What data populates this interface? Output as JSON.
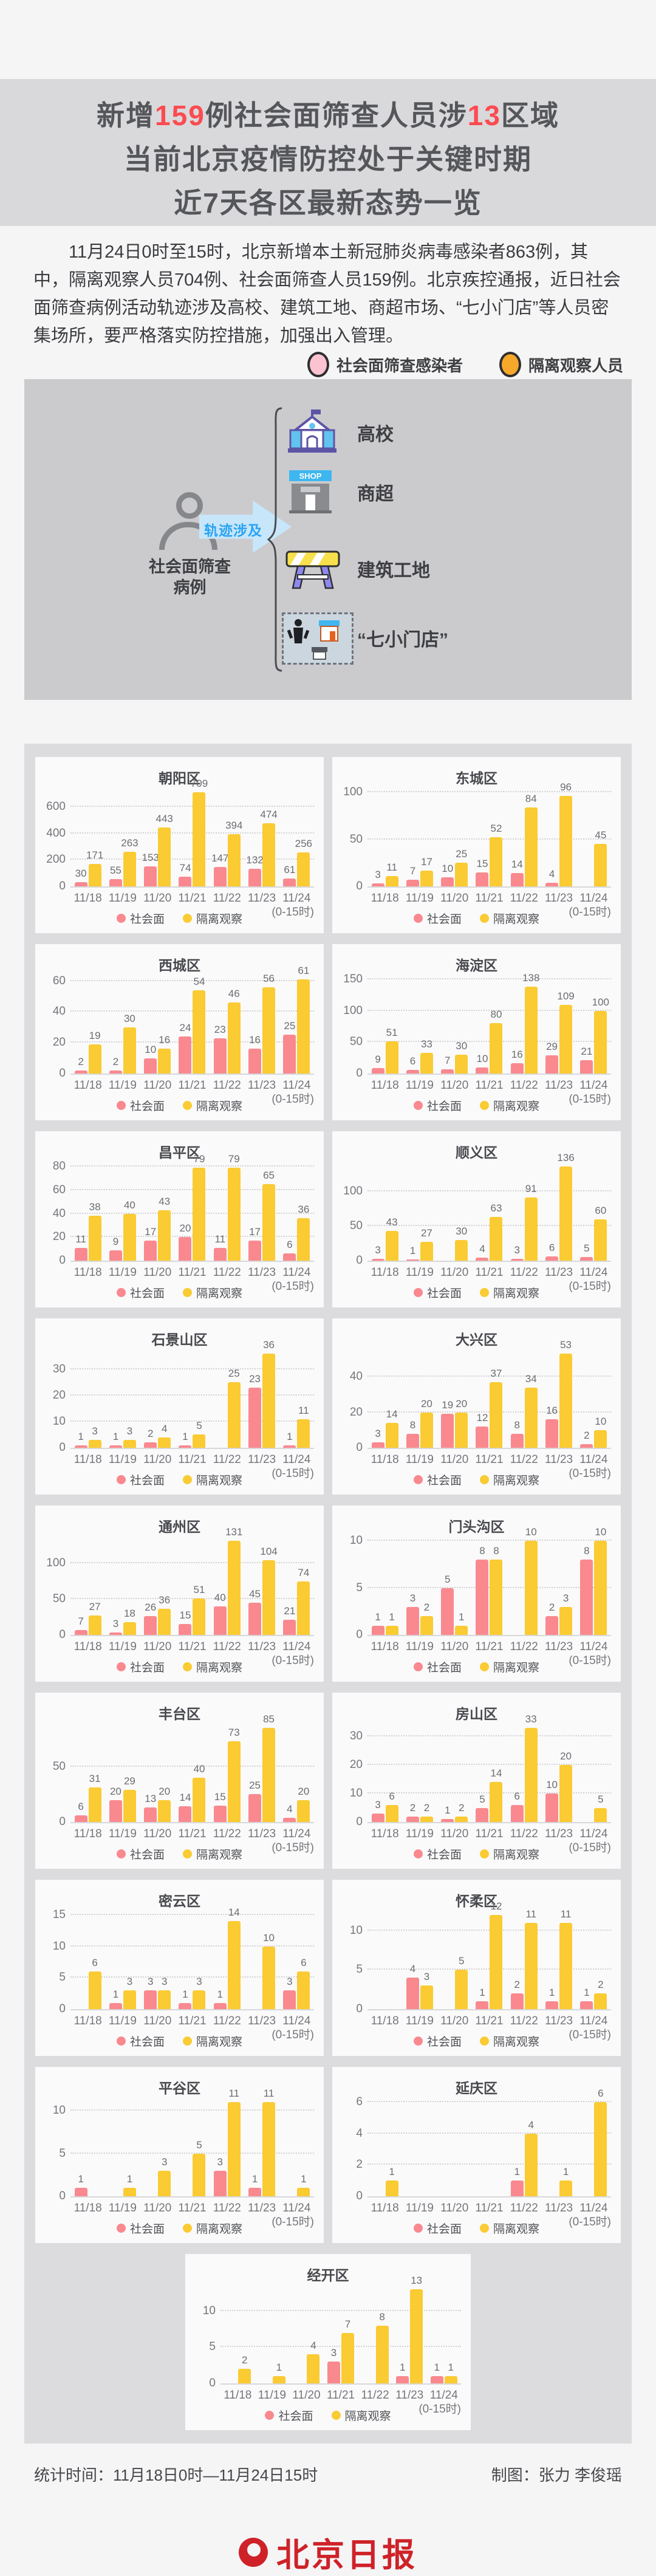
{
  "title": {
    "l1_pre": "新增",
    "l1_num1": "159",
    "l1_mid": "例社会面筛查人员涉",
    "l1_num2": "13",
    "l1_post": "区域",
    "line2": "当前北京疫情防控处于关键时期",
    "line3": "近7天各区最新态势一览",
    "accent_color": "#FB4B51"
  },
  "intro": {
    "text": "11月24日0时至15时，北京新增本土新冠肺炎病毒感染者863例，其中，隔离观察人员704例、社会面筛查人员159例。北京疾控通报，近日社会面筛查病例活动轨迹涉及高校、建筑工地、商超市场、“七小门店”等人员密集场所，要严格落实防控措施，加强出入管理。"
  },
  "legend": {
    "items": [
      {
        "label": "社会面筛查感染者",
        "color": "#FBC3D0"
      },
      {
        "label": "隔离观察人员",
        "color": "#F6A82B"
      }
    ]
  },
  "diagram": {
    "person_label_line1": "社会面筛查",
    "person_label_line2": "病例",
    "arrow_label": "轨迹涉及",
    "items": [
      {
        "label": "高校"
      },
      {
        "label": "商超",
        "icon_text": "SHOP"
      },
      {
        "label": "建筑工地"
      },
      {
        "label": "“七小门店”"
      }
    ]
  },
  "chart_common": {
    "xnote": "(0-15时)",
    "legend": [
      {
        "name": "社会面",
        "color": "#F9898F"
      },
      {
        "name": "隔离观察",
        "color": "#FACB32"
      }
    ]
  },
  "chart_data": [
    {
      "type": "bar",
      "title": "朝阳区",
      "categories": [
        "11/18",
        "11/19",
        "11/20",
        "11/21",
        "11/22",
        "11/23",
        "11/24"
      ],
      "yticks": [
        0,
        200,
        400,
        600
      ],
      "ymax": 709,
      "series": [
        {
          "name": "社会面",
          "values": [
            30,
            55,
            153,
            74,
            147,
            132,
            61
          ]
        },
        {
          "name": "隔离观察",
          "values": [
            171,
            263,
            443,
            709,
            394,
            474,
            256
          ]
        }
      ]
    },
    {
      "type": "bar",
      "title": "东城区",
      "categories": [
        "11/18",
        "11/19",
        "11/20",
        "11/21",
        "11/22",
        "11/23",
        "11/24"
      ],
      "yticks": [
        0,
        50,
        100
      ],
      "ymax": 100,
      "series": [
        {
          "name": "社会面",
          "values": [
            3,
            7,
            10,
            15,
            14,
            4,
            null
          ]
        },
        {
          "name": "隔离观察",
          "values": [
            11,
            17,
            25,
            52,
            84,
            96,
            45
          ]
        }
      ]
    },
    {
      "type": "bar",
      "title": "西城区",
      "categories": [
        "11/18",
        "11/19",
        "11/20",
        "11/21",
        "11/22",
        "11/23",
        "11/24"
      ],
      "yticks": [
        0,
        20,
        40,
        60
      ],
      "ymax": 61,
      "series": [
        {
          "name": "社会面",
          "values": [
            2,
            2,
            10,
            24,
            23,
            16,
            25
          ]
        },
        {
          "name": "隔离观察",
          "values": [
            19,
            30,
            16,
            54,
            46,
            56,
            61
          ]
        }
      ]
    },
    {
      "type": "bar",
      "title": "海淀区",
      "categories": [
        "11/18",
        "11/19",
        "11/20",
        "11/21",
        "11/22",
        "11/23",
        "11/24"
      ],
      "yticks": [
        0,
        50,
        100,
        150
      ],
      "ymax": 150,
      "series": [
        {
          "name": "社会面",
          "values": [
            9,
            6,
            7,
            10,
            16,
            29,
            21
          ]
        },
        {
          "name": "隔离观察",
          "values": [
            51,
            33,
            30,
            80,
            138,
            109,
            100
          ]
        }
      ]
    },
    {
      "type": "bar",
      "title": "昌平区",
      "categories": [
        "11/18",
        "11/19",
        "11/20",
        "11/21",
        "11/22",
        "11/23",
        "11/24"
      ],
      "yticks": [
        0,
        20,
        40,
        60,
        80
      ],
      "ymax": 80,
      "series": [
        {
          "name": "社会面",
          "values": [
            11,
            9,
            17,
            20,
            11,
            17,
            6
          ]
        },
        {
          "name": "隔离观察",
          "values": [
            38,
            40,
            43,
            79,
            79,
            65,
            36
          ]
        }
      ]
    },
    {
      "type": "bar",
      "title": "顺义区",
      "categories": [
        "11/18",
        "11/19",
        "11/20",
        "11/21",
        "11/22",
        "11/23",
        "11/24"
      ],
      "yticks": [
        0,
        50,
        100
      ],
      "ymax": 136,
      "series": [
        {
          "name": "社会面",
          "values": [
            3,
            1,
            null,
            4,
            3,
            6,
            5
          ]
        },
        {
          "name": "隔离观察",
          "values": [
            43,
            27,
            30,
            63,
            91,
            136,
            60
          ]
        }
      ]
    },
    {
      "type": "bar",
      "title": "石景山区",
      "categories": [
        "11/18",
        "11/19",
        "11/20",
        "11/21",
        "11/22",
        "11/23",
        "11/24"
      ],
      "yticks": [
        0,
        10,
        20,
        30
      ],
      "ymax": 36,
      "series": [
        {
          "name": "社会面",
          "values": [
            1,
            1,
            2,
            1,
            null,
            23,
            1
          ]
        },
        {
          "name": "隔离观察",
          "values": [
            3,
            3,
            4,
            5,
            25,
            36,
            11
          ]
        }
      ]
    },
    {
      "type": "bar",
      "title": "大兴区",
      "categories": [
        "11/18",
        "11/19",
        "11/20",
        "11/21",
        "11/22",
        "11/23",
        "11/24"
      ],
      "yticks": [
        0,
        20,
        40
      ],
      "ymax": 53,
      "series": [
        {
          "name": "社会面",
          "values": [
            3,
            8,
            19,
            12,
            8,
            16,
            2
          ]
        },
        {
          "name": "隔离观察",
          "values": [
            14,
            20,
            20,
            37,
            34,
            53,
            10
          ]
        }
      ]
    },
    {
      "type": "bar",
      "title": "通州区",
      "categories": [
        "11/18",
        "11/19",
        "11/20",
        "11/21",
        "11/22",
        "11/23",
        "11/24"
      ],
      "yticks": [
        0,
        50,
        100
      ],
      "ymax": 131,
      "series": [
        {
          "name": "社会面",
          "values": [
            7,
            3,
            26,
            15,
            40,
            45,
            21
          ]
        },
        {
          "name": "隔离观察",
          "values": [
            27,
            18,
            36,
            51,
            131,
            104,
            74
          ]
        }
      ]
    },
    {
      "type": "bar",
      "title": "门头沟区",
      "categories": [
        "11/18",
        "11/19",
        "11/20",
        "11/21",
        "11/22",
        "11/23",
        "11/24"
      ],
      "yticks": [
        0,
        5,
        10
      ],
      "ymax": 10,
      "series": [
        {
          "name": "社会面",
          "values": [
            1,
            3,
            5,
            8,
            null,
            2,
            8
          ]
        },
        {
          "name": "隔离观察",
          "values": [
            1,
            2,
            1,
            8,
            10,
            3,
            10
          ]
        }
      ]
    },
    {
      "type": "bar",
      "title": "丰台区",
      "categories": [
        "11/18",
        "11/19",
        "11/20",
        "11/21",
        "11/22",
        "11/23",
        "11/24"
      ],
      "yticks": [
        0,
        50
      ],
      "ymax": 85,
      "series": [
        {
          "name": "社会面",
          "values": [
            6,
            20,
            13,
            14,
            15,
            25,
            4
          ]
        },
        {
          "name": "隔离观察",
          "values": [
            31,
            29,
            20,
            40,
            73,
            85,
            20
          ]
        }
      ]
    },
    {
      "type": "bar",
      "title": "房山区",
      "categories": [
        "11/18",
        "11/19",
        "11/20",
        "11/21",
        "11/22",
        "11/23",
        "11/24"
      ],
      "yticks": [
        0,
        10,
        20,
        30
      ],
      "ymax": 33,
      "series": [
        {
          "name": "社会面",
          "values": [
            3,
            2,
            1,
            5,
            6,
            10,
            null
          ]
        },
        {
          "name": "隔离观察",
          "values": [
            6,
            2,
            2,
            14,
            33,
            20,
            5
          ]
        }
      ]
    },
    {
      "type": "bar",
      "title": "密云区",
      "categories": [
        "11/18",
        "11/19",
        "11/20",
        "11/21",
        "11/22",
        "11/23",
        "11/24"
      ],
      "yticks": [
        0,
        5,
        10,
        15
      ],
      "ymax": 15,
      "series": [
        {
          "name": "社会面",
          "values": [
            null,
            1,
            3,
            1,
            1,
            null,
            3
          ]
        },
        {
          "name": "隔离观察",
          "values": [
            6,
            3,
            3,
            3,
            14,
            10,
            6
          ]
        }
      ]
    },
    {
      "type": "bar",
      "title": "怀柔区",
      "categories": [
        "11/18",
        "11/19",
        "11/20",
        "11/21",
        "11/22",
        "11/23",
        "11/24"
      ],
      "yticks": [
        0,
        5,
        10
      ],
      "ymax": 12,
      "series": [
        {
          "name": "社会面",
          "values": [
            null,
            4,
            null,
            1,
            2,
            1,
            1
          ]
        },
        {
          "name": "隔离观察",
          "values": [
            null,
            3,
            5,
            12,
            11,
            11,
            2
          ]
        }
      ]
    },
    {
      "type": "bar",
      "title": "平谷区",
      "categories": [
        "11/18",
        "11/19",
        "11/20",
        "11/21",
        "11/22",
        "11/23",
        "11/24"
      ],
      "yticks": [
        0,
        5,
        10
      ],
      "ymax": 11,
      "series": [
        {
          "name": "社会面",
          "values": [
            1,
            null,
            null,
            null,
            3,
            1,
            null
          ]
        },
        {
          "name": "隔离观察",
          "values": [
            null,
            1,
            3,
            5,
            11,
            11,
            1
          ]
        }
      ]
    },
    {
      "type": "bar",
      "title": "延庆区",
      "categories": [
        "11/18",
        "11/19",
        "11/20",
        "11/21",
        "11/22",
        "11/23",
        "11/24"
      ],
      "yticks": [
        0,
        2,
        4,
        6
      ],
      "ymax": 6,
      "series": [
        {
          "name": "社会面",
          "values": [
            null,
            null,
            null,
            null,
            1,
            null,
            null
          ]
        },
        {
          "name": "隔离观察",
          "values": [
            1,
            null,
            null,
            null,
            4,
            1,
            6
          ]
        }
      ]
    },
    {
      "type": "bar",
      "title": "经开区",
      "categories": [
        "11/18",
        "11/19",
        "11/20",
        "11/21",
        "11/22",
        "11/23",
        "11/24"
      ],
      "yticks": [
        0,
        5,
        10
      ],
      "ymax": 13,
      "series": [
        {
          "name": "社会面",
          "values": [
            null,
            null,
            null,
            3,
            null,
            1,
            1
          ]
        },
        {
          "name": "隔离观察",
          "values": [
            2,
            1,
            4,
            7,
            8,
            13,
            1
          ]
        }
      ]
    }
  ],
  "footer": {
    "stats": "统计时间：11月18日0时—11月24日15时",
    "credit": "制图：张力 李俊瑶",
    "logo_text": "北京日报"
  }
}
